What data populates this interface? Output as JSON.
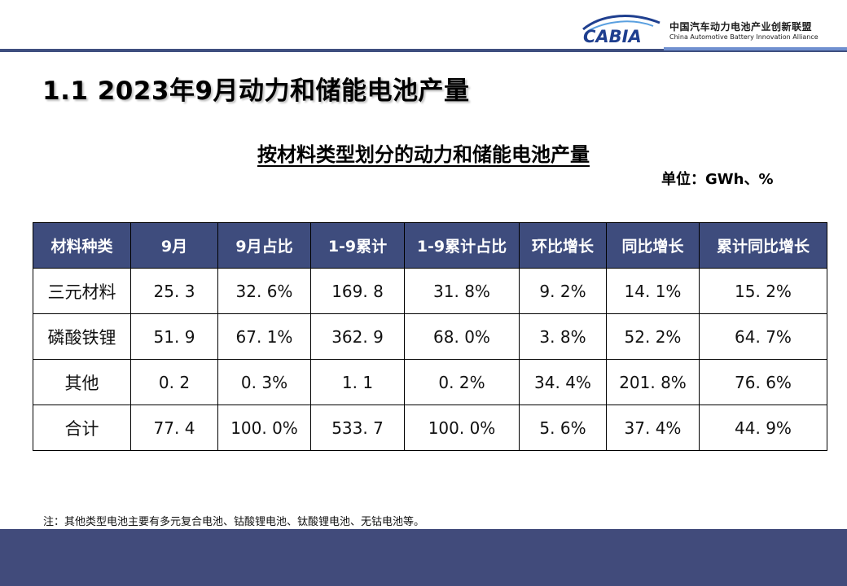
{
  "header": {
    "logo_text": "CABIA",
    "org_name_cn": "中国汽车动力电池产业创新联盟",
    "org_name_en": "China Automotive Battery Innovation Alliance",
    "colors": {
      "brand_dark": "#1f3f8f",
      "brand_light": "#5aa0e0",
      "rule": "#3f4f7f"
    }
  },
  "page": {
    "title": "1.1  2023年9月动力和储能电池产量"
  },
  "table": {
    "title": "按材料类型划分的动力和储能电池产量",
    "unit": "单位：GWh、%",
    "header_color": "#3e4c7d",
    "columns": [
      "材料种类",
      "9月",
      "9月占比",
      "1-9累计",
      "1-9累计占比",
      "环比增长",
      "同比增长",
      "累计同比增长"
    ],
    "rows": [
      [
        "三元材料",
        "25. 3",
        "32. 6%",
        "169. 8",
        "31. 8%",
        "9. 2%",
        "14. 1%",
        "15. 2%"
      ],
      [
        "磷酸铁锂",
        "51. 9",
        "67. 1%",
        "362. 9",
        "68. 0%",
        "3. 8%",
        "52. 2%",
        "64. 7%"
      ],
      [
        "其他",
        "0. 2",
        "0. 3%",
        "1. 1",
        "0. 2%",
        "34. 4%",
        "201. 8%",
        "76. 6%"
      ],
      [
        "合计",
        "77. 4",
        "100. 0%",
        "533. 7",
        "100. 0%",
        "5. 6%",
        "37. 4%",
        "44. 9%"
      ]
    ]
  },
  "footnote": "注：其他类型电池主要有多元复合电池、钴酸锂电池、钛酸锂电池、无钴电池等。"
}
